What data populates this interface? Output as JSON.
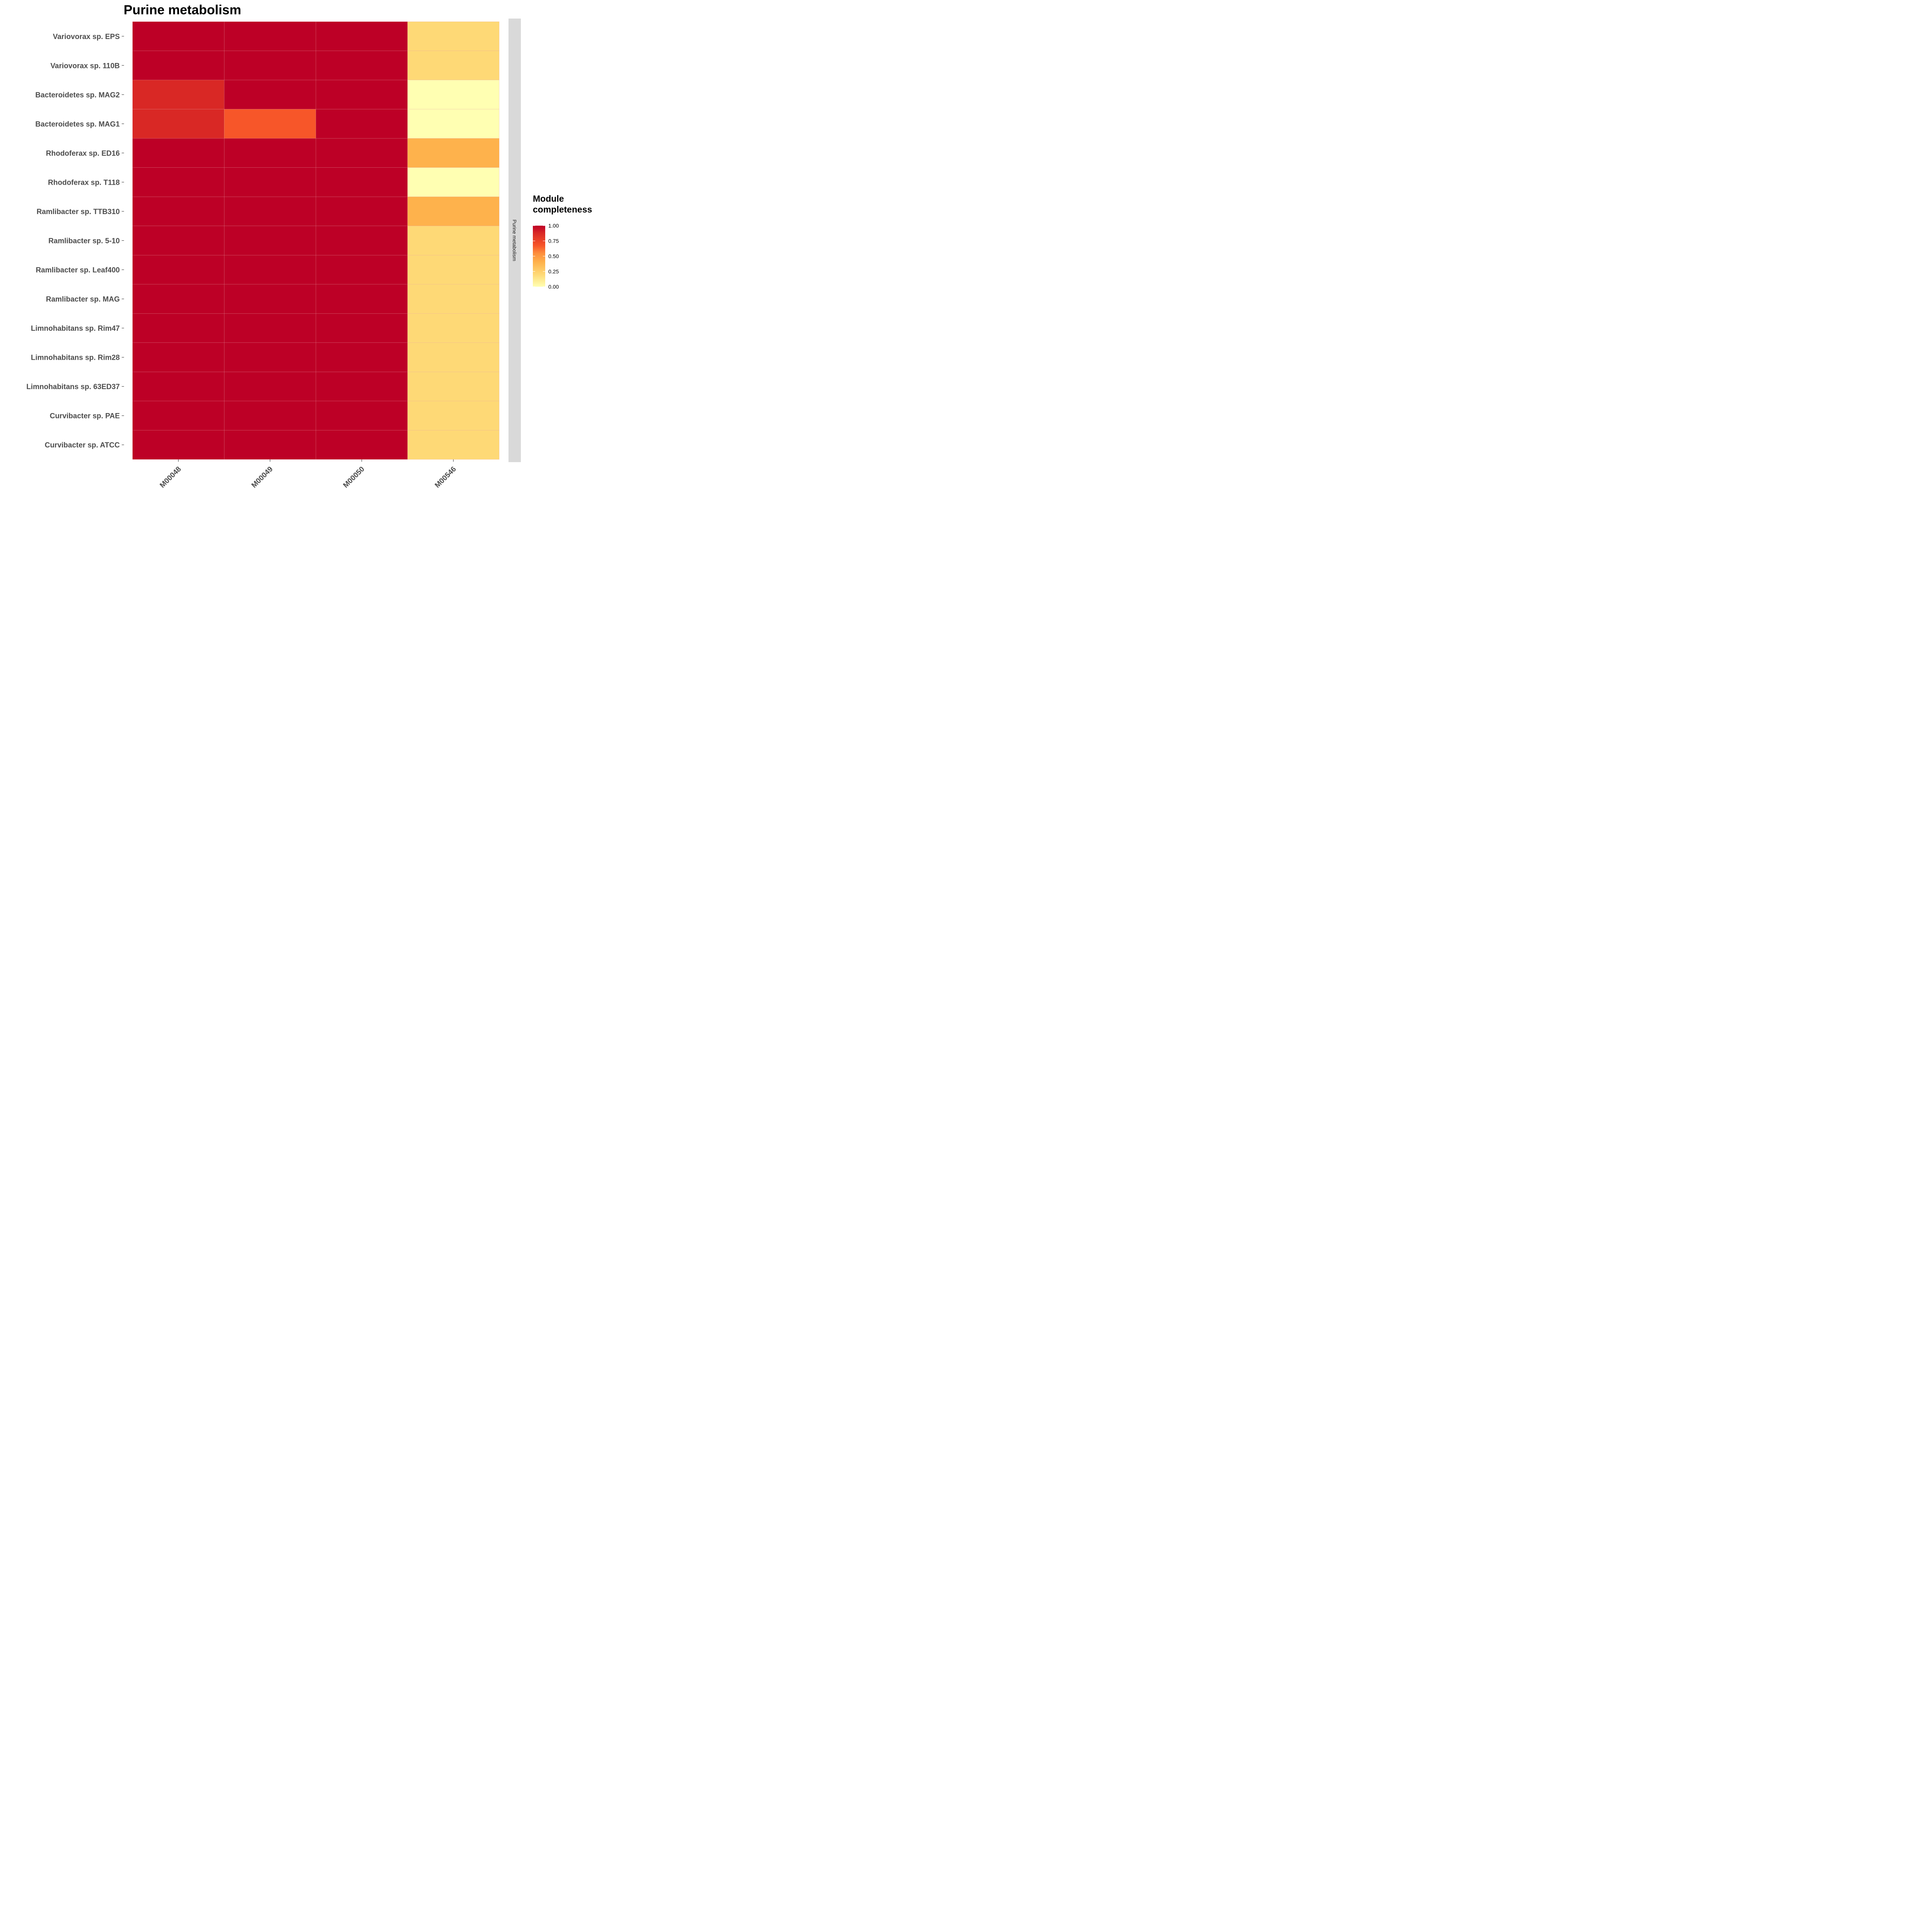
{
  "chart_data": {
    "type": "heatmap",
    "title": "Purine metabolism",
    "facet_label": "Purine metabolism",
    "x_categories": [
      "M00048",
      "M00049",
      "M00050",
      "M00546"
    ],
    "y_categories": [
      "Variovorax sp. EPS",
      "Variovorax sp. 110B",
      "Bacteroidetes sp. MAG2",
      "Bacteroidetes sp. MAG1",
      "Rhodoferax sp. ED16",
      "Rhodoferax sp. T118",
      "Ramlibacter sp. TTB310",
      "Ramlibacter sp. 5-10",
      "Ramlibacter sp. Leaf400",
      "Ramlibacter sp. MAG",
      "Limnohabitans sp. Rim47",
      "Limnohabitans sp. Rim28",
      "Limnohabitans sp. 63ED37",
      "Curvibacter sp. PAE",
      "Curvibacter sp. ATCC"
    ],
    "values": [
      [
        1.0,
        1.0,
        1.0,
        0.2
      ],
      [
        1.0,
        1.0,
        1.0,
        0.2
      ],
      [
        0.88,
        1.0,
        1.0,
        0.0
      ],
      [
        0.88,
        0.67,
        1.0,
        0.0
      ],
      [
        1.0,
        1.0,
        1.0,
        0.4
      ],
      [
        1.0,
        1.0,
        1.0,
        0.0
      ],
      [
        1.0,
        1.0,
        1.0,
        0.4
      ],
      [
        1.0,
        1.0,
        1.0,
        0.2
      ],
      [
        1.0,
        1.0,
        1.0,
        0.2
      ],
      [
        1.0,
        1.0,
        1.0,
        0.2
      ],
      [
        1.0,
        1.0,
        1.0,
        0.2
      ],
      [
        1.0,
        1.0,
        1.0,
        0.2
      ],
      [
        1.0,
        1.0,
        1.0,
        0.2
      ],
      [
        1.0,
        1.0,
        1.0,
        0.2
      ],
      [
        1.0,
        1.0,
        1.0,
        0.2
      ]
    ],
    "legend": {
      "title": "Module completeness",
      "title_lines": [
        "Module",
        "completeness"
      ],
      "range": [
        0,
        1
      ],
      "ticks": [
        "1.00",
        "0.75",
        "0.50",
        "0.25",
        "0.00"
      ],
      "tick_values": [
        1.0,
        0.75,
        0.5,
        0.25,
        0.0
      ],
      "placement": "right"
    },
    "colorscale": [
      {
        "v": 0.0,
        "color": "#ffffb2"
      },
      {
        "v": 0.2,
        "color": "#fed976"
      },
      {
        "v": 0.4,
        "color": "#feb24c"
      },
      {
        "v": 0.55,
        "color": "#fd8d3c"
      },
      {
        "v": 0.67,
        "color": "#f75629"
      },
      {
        "v": 0.88,
        "color": "#d92825"
      },
      {
        "v": 1.0,
        "color": "#bd0026"
      }
    ],
    "grid": true
  }
}
